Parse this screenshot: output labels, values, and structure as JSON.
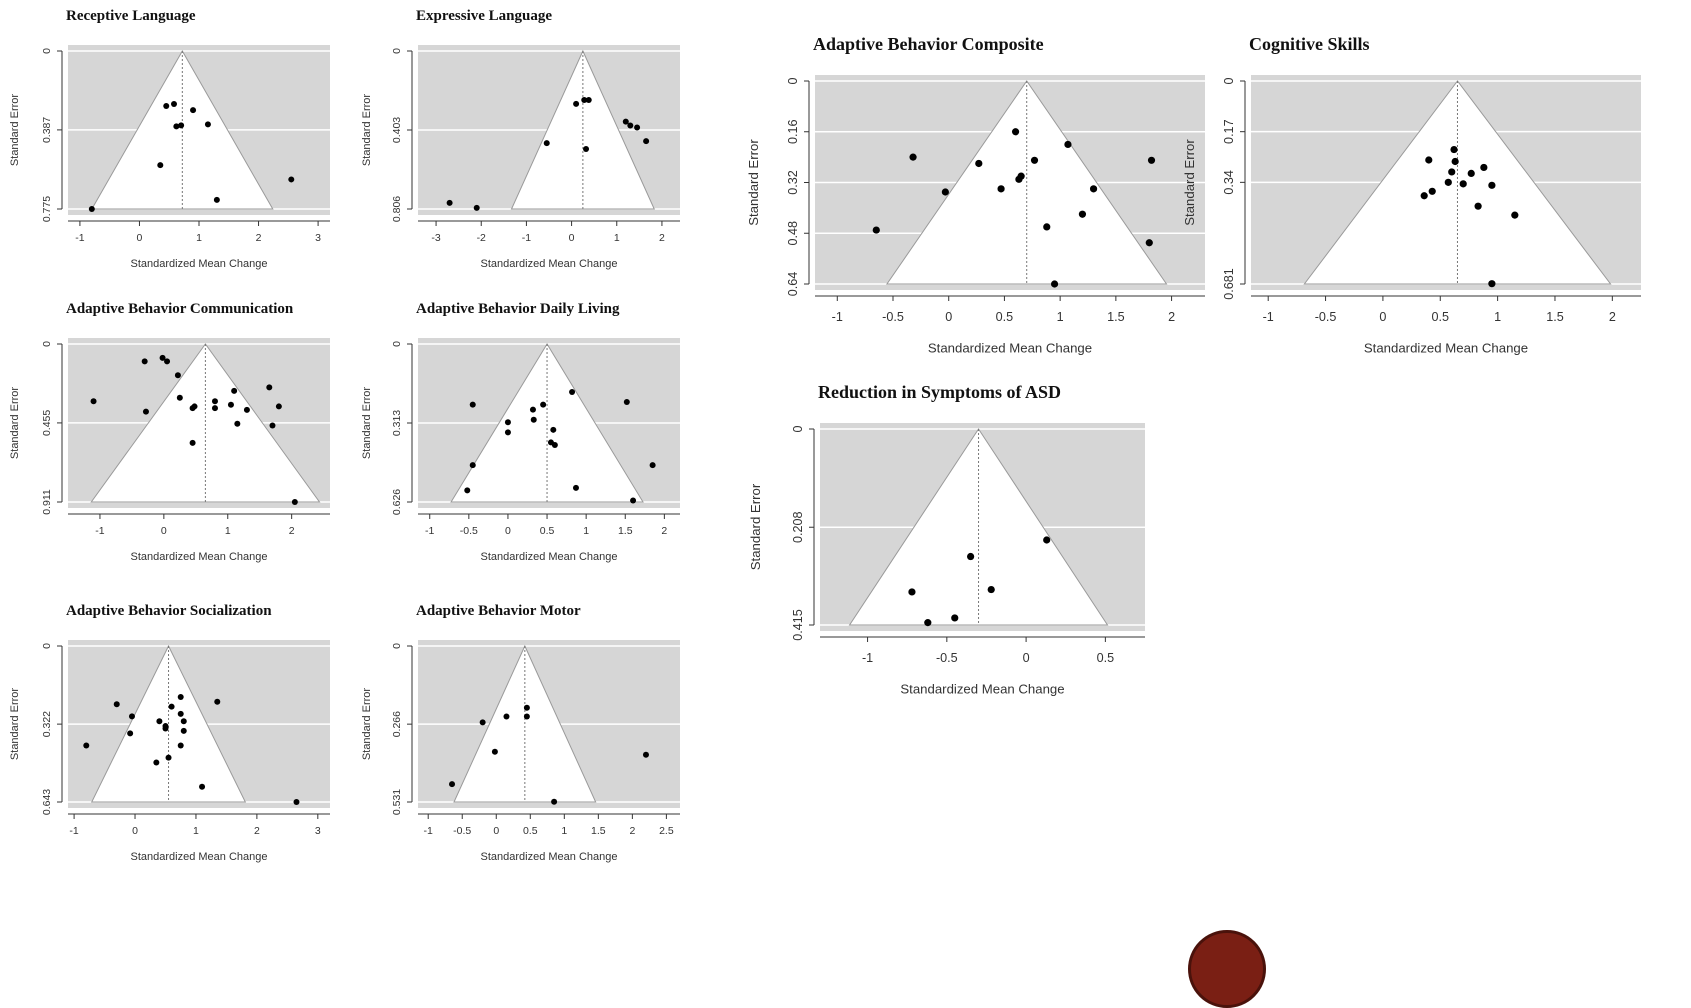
{
  "chart_data": [
    {
      "id": "receptive",
      "type": "scatter",
      "title": "Receptive Language",
      "xlabel": "Standardized Mean Change",
      "ylabel": "Standard Error",
      "xlim": [
        -1.2,
        3.2
      ],
      "ylim": [
        0,
        0.775
      ],
      "xticks": [
        -1,
        0,
        1,
        2,
        3
      ],
      "xtick_labels": [
        "-1",
        "0",
        "1",
        "2",
        "3"
      ],
      "yticks": [
        0,
        0.387,
        0.775
      ],
      "ytick_labels": [
        "0",
        "0.387",
        "0.775"
      ],
      "center": 0.72,
      "points": [
        [
          -0.8,
          0.775
        ],
        [
          0.45,
          0.27
        ],
        [
          0.58,
          0.26
        ],
        [
          0.62,
          0.37
        ],
        [
          0.7,
          0.365
        ],
        [
          0.9,
          0.29
        ],
        [
          1.15,
          0.36
        ],
        [
          0.35,
          0.56
        ],
        [
          1.3,
          0.73
        ],
        [
          2.55,
          0.63
        ]
      ]
    },
    {
      "id": "expressive",
      "type": "scatter",
      "title": "Expressive Language",
      "xlabel": "Standardized Mean Change",
      "ylabel": "Standard Error",
      "xlim": [
        -3.4,
        2.4
      ],
      "ylim": [
        0,
        0.806
      ],
      "xticks": [
        -3,
        -2,
        -1,
        0,
        1,
        2
      ],
      "xtick_labels": [
        "-3",
        "-2",
        "-1",
        "0",
        "1",
        "2"
      ],
      "yticks": [
        0,
        0.403,
        0.806
      ],
      "ytick_labels": [
        "0",
        "0.403",
        "0.806"
      ],
      "center": 0.25,
      "points": [
        [
          -2.7,
          0.775
        ],
        [
          -2.1,
          0.8
        ],
        [
          -0.55,
          0.47
        ],
        [
          0.1,
          0.27
        ],
        [
          0.28,
          0.25
        ],
        [
          0.38,
          0.25
        ],
        [
          0.32,
          0.5
        ],
        [
          1.2,
          0.36
        ],
        [
          1.3,
          0.38
        ],
        [
          1.45,
          0.39
        ],
        [
          1.65,
          0.46
        ]
      ]
    },
    {
      "id": "abc",
      "type": "scatter",
      "title": "Adaptive Behavior Composite",
      "xlabel": "Standardized Mean Change",
      "ylabel": "Standard Error",
      "xlim": [
        -1.2,
        2.3
      ],
      "ylim": [
        0,
        0.64
      ],
      "xticks": [
        -1,
        -0.5,
        0,
        0.5,
        1,
        1.5,
        2
      ],
      "xtick_labels": [
        "-1",
        "-0.5",
        "0",
        "0.5",
        "1",
        "1.5",
        "2"
      ],
      "yticks": [
        0,
        0.16,
        0.32,
        0.48,
        0.64
      ],
      "ytick_labels": [
        "0",
        "0.16",
        "0.32",
        "0.48",
        "0.64"
      ],
      "center": 0.7,
      "points": [
        [
          -0.65,
          0.47
        ],
        [
          -0.32,
          0.24
        ],
        [
          -0.03,
          0.35
        ],
        [
          0.27,
          0.26
        ],
        [
          0.47,
          0.34
        ],
        [
          0.6,
          0.16
        ],
        [
          0.63,
          0.31
        ],
        [
          0.65,
          0.3
        ],
        [
          0.77,
          0.25
        ],
        [
          0.88,
          0.46
        ],
        [
          0.95,
          0.64
        ],
        [
          1.07,
          0.2
        ],
        [
          1.2,
          0.42
        ],
        [
          1.3,
          0.34
        ],
        [
          1.82,
          0.25
        ],
        [
          1.8,
          0.51
        ]
      ]
    },
    {
      "id": "cognitive",
      "type": "scatter",
      "title": "Cognitive Skills",
      "xlabel": "Standardized Mean Change",
      "ylabel": "Standard Error",
      "xlim": [
        -1.15,
        2.25
      ],
      "ylim": [
        0,
        0.681
      ],
      "xticks": [
        -1,
        -0.5,
        0,
        0.5,
        1,
        1.5,
        2
      ],
      "xtick_labels": [
        "-1",
        "-0.5",
        "0",
        "0.5",
        "1",
        "1.5",
        "2"
      ],
      "yticks": [
        0,
        0.17,
        0.34,
        0.681
      ],
      "ytick_labels": [
        "0",
        "0.17",
        "0.34",
        "0.681"
      ],
      "center": 0.65,
      "points": [
        [
          0.4,
          0.265
        ],
        [
          0.62,
          0.23
        ],
        [
          0.63,
          0.27
        ],
        [
          0.6,
          0.305
        ],
        [
          0.57,
          0.34
        ],
        [
          0.43,
          0.37
        ],
        [
          0.36,
          0.385
        ],
        [
          0.7,
          0.345
        ],
        [
          0.77,
          0.31
        ],
        [
          0.88,
          0.29
        ],
        [
          0.95,
          0.35
        ],
        [
          0.83,
          0.42
        ],
        [
          1.15,
          0.45
        ],
        [
          0.95,
          0.68
        ]
      ]
    },
    {
      "id": "abcomm",
      "type": "scatter",
      "title": "Adaptive Behavior Communication",
      "xlabel": "Standardized Mean Change",
      "ylabel": "Standard Error",
      "xlim": [
        -1.5,
        2.6
      ],
      "ylim": [
        0,
        0.911
      ],
      "xticks": [
        -1,
        0,
        1,
        2
      ],
      "xtick_labels": [
        "-1",
        "0",
        "1",
        "2"
      ],
      "yticks": [
        0,
        0.455,
        0.911
      ],
      "ytick_labels": [
        "0",
        "0.455",
        "0.911"
      ],
      "center": 0.65,
      "points": [
        [
          -1.1,
          0.33
        ],
        [
          -0.3,
          0.1
        ],
        [
          -0.28,
          0.39
        ],
        [
          -0.02,
          0.08
        ],
        [
          0.05,
          0.1
        ],
        [
          0.22,
          0.18
        ],
        [
          0.25,
          0.31
        ],
        [
          0.45,
          0.37
        ],
        [
          0.48,
          0.36
        ],
        [
          0.45,
          0.57
        ],
        [
          0.8,
          0.33
        ],
        [
          0.8,
          0.37
        ],
        [
          1.05,
          0.35
        ],
        [
          1.1,
          0.27
        ],
        [
          1.15,
          0.46
        ],
        [
          1.3,
          0.38
        ],
        [
          1.65,
          0.25
        ],
        [
          1.7,
          0.47
        ],
        [
          1.8,
          0.36
        ],
        [
          2.05,
          0.911
        ]
      ]
    },
    {
      "id": "abdaily",
      "type": "scatter",
      "title": "Adaptive Behavior Daily Living",
      "xlabel": "Standardized Mean Change",
      "ylabel": "Standard Error",
      "xlim": [
        -1.15,
        2.2
      ],
      "ylim": [
        0,
        0.626
      ],
      "xticks": [
        -1,
        -0.5,
        0,
        0.5,
        1,
        1.5,
        2
      ],
      "xtick_labels": [
        "-1",
        "-0.5",
        "0",
        "0.5",
        "1",
        "1.5",
        "2"
      ],
      "yticks": [
        0,
        0.313,
        0.626
      ],
      "ytick_labels": [
        "0",
        "0.313",
        "0.626"
      ],
      "center": 0.5,
      "points": [
        [
          -0.45,
          0.24
        ],
        [
          -0.45,
          0.48
        ],
        [
          -0.52,
          0.58
        ],
        [
          0,
          0.31
        ],
        [
          0,
          0.35
        ],
        [
          0.32,
          0.26
        ],
        [
          0.33,
          0.3
        ],
        [
          0.45,
          0.24
        ],
        [
          0.58,
          0.34
        ],
        [
          0.55,
          0.39
        ],
        [
          0.6,
          0.4
        ],
        [
          0.82,
          0.19
        ],
        [
          0.87,
          0.57
        ],
        [
          1.52,
          0.23
        ],
        [
          1.6,
          0.62
        ],
        [
          1.85,
          0.48
        ]
      ]
    },
    {
      "id": "abasd",
      "type": "scatter",
      "title": "Reduction in Symptoms of ASD",
      "xlabel": "Standardized Mean Change",
      "ylabel": "Standard Error",
      "xlim": [
        -1.3,
        0.75
      ],
      "ylim": [
        0,
        0.415
      ],
      "xticks": [
        -1,
        -0.5,
        0,
        0.5
      ],
      "xtick_labels": [
        "-1",
        "-0.5",
        "0",
        "0.5"
      ],
      "yticks": [
        0,
        0.208,
        0.415
      ],
      "ytick_labels": [
        "0",
        "0.208",
        "0.415"
      ],
      "center": -0.3,
      "points": [
        [
          0.13,
          0.235
        ],
        [
          -0.35,
          0.27
        ],
        [
          -0.22,
          0.34
        ],
        [
          -0.72,
          0.345
        ],
        [
          -0.45,
          0.4
        ],
        [
          -0.62,
          0.41
        ]
      ]
    },
    {
      "id": "absocial",
      "type": "scatter",
      "title": "Adaptive Behavior Socialization",
      "xlabel": "Standardized Mean Change",
      "ylabel": "Standard Error",
      "xlim": [
        -1.1,
        3.2
      ],
      "ylim": [
        0,
        0.643
      ],
      "xticks": [
        -1,
        0,
        1,
        2,
        3
      ],
      "xtick_labels": [
        "-1",
        "0",
        "1",
        "2",
        "3"
      ],
      "yticks": [
        0,
        0.322,
        0.643
      ],
      "ytick_labels": [
        "0",
        "0.322",
        "0.643"
      ],
      "center": 0.55,
      "points": [
        [
          -0.8,
          0.41
        ],
        [
          -0.3,
          0.24
        ],
        [
          -0.05,
          0.29
        ],
        [
          -0.08,
          0.36
        ],
        [
          0.4,
          0.31
        ],
        [
          0.5,
          0.33
        ],
        [
          0.5,
          0.34
        ],
        [
          0.6,
          0.25
        ],
        [
          0.55,
          0.46
        ],
        [
          0.35,
          0.48
        ],
        [
          0.75,
          0.21
        ],
        [
          0.75,
          0.28
        ],
        [
          0.8,
          0.31
        ],
        [
          0.8,
          0.35
        ],
        [
          0.75,
          0.41
        ],
        [
          1.1,
          0.58
        ],
        [
          1.35,
          0.23
        ],
        [
          2.65,
          0.643
        ]
      ]
    },
    {
      "id": "abmotor",
      "type": "scatter",
      "title": "Adaptive Behavior Motor",
      "xlabel": "Standardized Mean Change",
      "ylabel": "Standard Error",
      "xlim": [
        -1.15,
        2.7
      ],
      "ylim": [
        0,
        0.531
      ],
      "xticks": [
        -1,
        -0.5,
        0,
        0.5,
        1,
        1.5,
        2,
        2.5
      ],
      "xtick_labels": [
        "-1",
        "-0.5",
        "0",
        "0.5",
        "1",
        "1.5",
        "2",
        "2.5"
      ],
      "yticks": [
        0,
        0.266,
        0.531
      ],
      "ytick_labels": [
        "0",
        "0.266",
        "0.531"
      ],
      "center": 0.42,
      "points": [
        [
          -0.65,
          0.47
        ],
        [
          -0.2,
          0.26
        ],
        [
          -0.02,
          0.36
        ],
        [
          0.15,
          0.24
        ],
        [
          0.45,
          0.21
        ],
        [
          0.45,
          0.24
        ],
        [
          0.85,
          0.53
        ],
        [
          2.2,
          0.37
        ]
      ]
    }
  ]
}
